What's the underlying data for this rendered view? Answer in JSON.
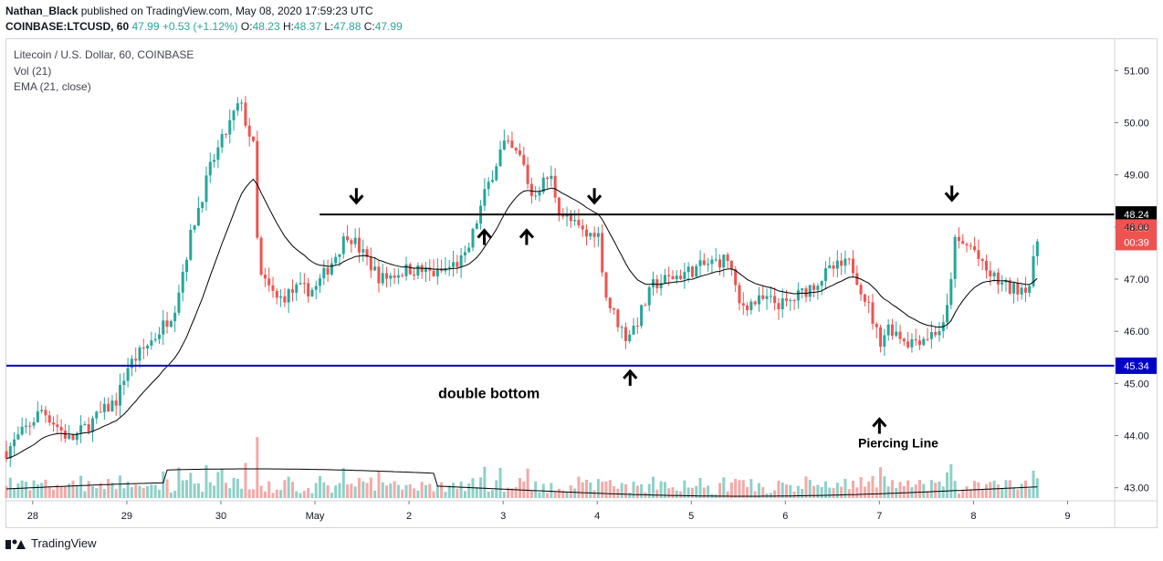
{
  "header": {
    "author": "Nathan_Black",
    "published_text": "published on TradingView.com, May 08, 2020 17:59:23 UTC",
    "symbol": "COINBASE:LTCUSD, 60",
    "last": "47.99",
    "change": "+0.53 (+1.12%)",
    "o_label": "O:",
    "o_value": "48.23",
    "h_label": "H:",
    "h_value": "48.37",
    "l_label": "L:",
    "l_value": "47.88",
    "c_label": "C:",
    "c_value": "47.99"
  },
  "legend": {
    "title": "Litecoin / U.S. Dollar, 60, COINBASE",
    "vol": "Vol (21)",
    "ema": "EMA (21, close)"
  },
  "footer": {
    "brand": "TradingView"
  },
  "colors": {
    "up": "#26a69a",
    "down": "#ef5350",
    "vol_up": "#8fd0c9",
    "vol_down": "#f3a9a7",
    "support": "#0000c8",
    "resistance": "#000000",
    "ema": "#000000"
  },
  "chart_data": {
    "type": "candlestick",
    "symbol": "LTCUSD",
    "timeframe": "60",
    "x_ticks": [
      {
        "label": "28",
        "value": 0
      },
      {
        "label": "29",
        "value": 1
      },
      {
        "label": "30",
        "value": 2
      },
      {
        "label": "May",
        "value": 3
      },
      {
        "label": "2",
        "value": 4
      },
      {
        "label": "3",
        "value": 5
      },
      {
        "label": "4",
        "value": 6
      },
      {
        "label": "5",
        "value": 7
      },
      {
        "label": "6",
        "value": 8
      },
      {
        "label": "7",
        "value": 9
      },
      {
        "label": "8",
        "value": 10
      },
      {
        "label": "9",
        "value": 11
      }
    ],
    "xlim": [
      -0.28,
      11.5
    ],
    "ylim": [
      42.75,
      51.6
    ],
    "y_ticks": [
      "51.00",
      "50.00",
      "49.00",
      "48.00",
      "47.00",
      "46.00",
      "45.00",
      "44.00",
      "43.00"
    ],
    "price_path": [
      [
        -0.28,
        43.7
      ],
      [
        0.1,
        44.5
      ],
      [
        0.4,
        43.9
      ],
      [
        0.9,
        44.7
      ],
      [
        1.0,
        45.3
      ],
      [
        1.3,
        45.9
      ],
      [
        1.5,
        46.4
      ],
      [
        1.7,
        48.0
      ],
      [
        1.9,
        49.2
      ],
      [
        2.2,
        50.4
      ],
      [
        2.35,
        49.5
      ],
      [
        2.4,
        47.1
      ],
      [
        2.6,
        46.6
      ],
      [
        2.8,
        46.8
      ],
      [
        3.0,
        46.8
      ],
      [
        3.2,
        47.4
      ],
      [
        3.35,
        47.9
      ],
      [
        3.5,
        47.5
      ],
      [
        3.7,
        47.0
      ],
      [
        4.0,
        47.2
      ],
      [
        4.3,
        47.1
      ],
      [
        4.6,
        47.4
      ],
      [
        4.8,
        48.6
      ],
      [
        5.0,
        49.6
      ],
      [
        5.2,
        49.3
      ],
      [
        5.3,
        48.6
      ],
      [
        5.5,
        49.0
      ],
      [
        5.6,
        48.3
      ],
      [
        5.9,
        47.8
      ],
      [
        6.0,
        48.0
      ],
      [
        6.1,
        46.6
      ],
      [
        6.3,
        45.9
      ],
      [
        6.4,
        46.1
      ],
      [
        6.6,
        46.9
      ],
      [
        6.9,
        47.1
      ],
      [
        7.2,
        47.3
      ],
      [
        7.4,
        47.4
      ],
      [
        7.5,
        46.5
      ],
      [
        7.8,
        46.6
      ],
      [
        8.0,
        46.5
      ],
      [
        8.3,
        46.9
      ],
      [
        8.5,
        47.2
      ],
      [
        8.7,
        47.3
      ],
      [
        8.9,
        46.4
      ],
      [
        9.0,
        45.8
      ],
      [
        9.1,
        46.1
      ],
      [
        9.3,
        45.8
      ],
      [
        9.5,
        45.9
      ],
      [
        9.7,
        46.1
      ],
      [
        9.8,
        47.7
      ],
      [
        10.0,
        47.6
      ],
      [
        10.1,
        47.2
      ],
      [
        10.3,
        46.9
      ],
      [
        10.4,
        46.8
      ],
      [
        10.6,
        46.9
      ],
      [
        10.7,
        47.99
      ]
    ],
    "horizontal_lines": [
      {
        "value": 48.24,
        "label": "48.24",
        "color": "#000000"
      },
      {
        "value": 45.34,
        "label": "45.34",
        "color": "#0000c8"
      }
    ],
    "last_price": {
      "value": 47.99,
      "label": "47.99",
      "countdown": "00:39"
    },
    "annotations": [
      {
        "text": "double bottom",
        "x": 4.85,
        "y": 44.72
      },
      {
        "text": "Piercing Line",
        "x": 9.2,
        "y": 43.77
      }
    ],
    "arrows": [
      {
        "dir": "down",
        "x": 3.44,
        "y": 48.5
      },
      {
        "dir": "up",
        "x": 4.8,
        "y": 47.9
      },
      {
        "dir": "up",
        "x": 5.25,
        "y": 47.9
      },
      {
        "dir": "down",
        "x": 5.97,
        "y": 48.5
      },
      {
        "dir": "up",
        "x": 6.35,
        "y": 45.2
      },
      {
        "dir": "up",
        "x": 9.0,
        "y": 44.28
      },
      {
        "dir": "down",
        "x": 9.77,
        "y": 48.55
      }
    ]
  }
}
